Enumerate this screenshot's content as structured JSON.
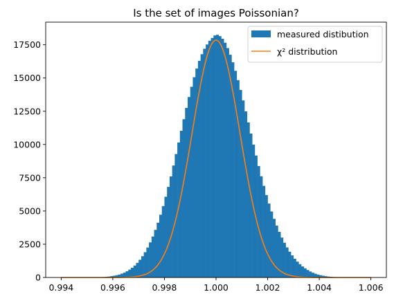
{
  "chart_data": {
    "type": "bar",
    "title": "Is the set of images Poissonian?",
    "xlabel": "",
    "ylabel": "",
    "xlim": [
      0.9934,
      1.0066
    ],
    "ylim": [
      0,
      19200
    ],
    "xticks": [
      0.994,
      0.996,
      0.998,
      1.0,
      1.002,
      1.004,
      1.006
    ],
    "xtick_labels": [
      "0.994",
      "0.996",
      "0.998",
      "1.000",
      "1.002",
      "1.004",
      "1.006"
    ],
    "yticks": [
      0,
      2500,
      5000,
      7500,
      10000,
      12500,
      15000,
      17500
    ],
    "ytick_labels": [
      "0",
      "2500",
      "5000",
      "7500",
      "10000",
      "12500",
      "15000",
      "17500"
    ],
    "grid": false,
    "legend_position": "top-right",
    "series": [
      {
        "name": "measured distibution",
        "kind": "histogram",
        "color": "#1f77b4",
        "bin_start": 0.9955,
        "bin_width": 0.0001,
        "values": [
          20,
          30,
          50,
          70,
          100,
          130,
          170,
          220,
          290,
          370,
          470,
          590,
          730,
          900,
          1100,
          1330,
          1600,
          1900,
          2250,
          2640,
          3080,
          3580,
          4120,
          4720,
          5370,
          6070,
          6810,
          7600,
          8420,
          9280,
          10150,
          11030,
          11900,
          12750,
          13570,
          14340,
          15060,
          15710,
          16290,
          16790,
          17200,
          17520,
          17800,
          18010,
          18200,
          18250,
          18150,
          17950,
          17650,
          17250,
          16750,
          16180,
          15540,
          14840,
          14100,
          13310,
          12490,
          11660,
          10820,
          9990,
          9170,
          8380,
          7610,
          6890,
          6200,
          5560,
          4960,
          4410,
          3900,
          3430,
          3000,
          2610,
          2260,
          1940,
          1660,
          1410,
          1190,
          1000,
          830,
          690,
          560,
          450,
          360,
          280,
          220,
          170,
          130,
          95,
          70,
          50,
          35,
          25
        ]
      },
      {
        "name": "χ² distribution",
        "kind": "line",
        "color": "#ff7f0e",
        "curve": {
          "peak": 17850,
          "center": 1.0,
          "sigma": 0.00093
        },
        "x_range": [
          0.994,
          1.006
        ]
      }
    ]
  }
}
